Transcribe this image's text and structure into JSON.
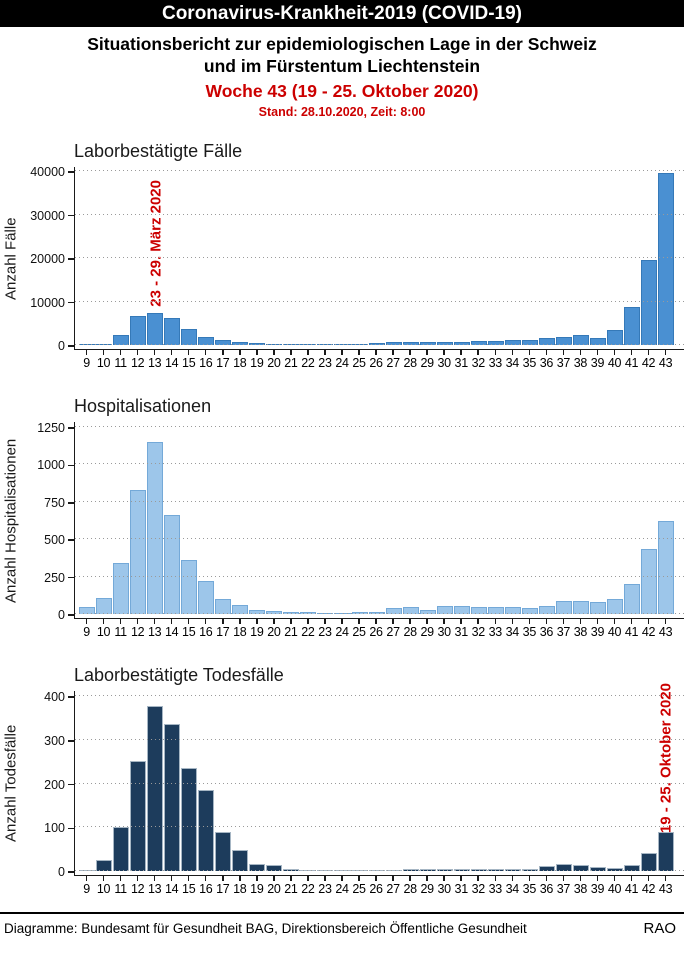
{
  "header": {
    "banner": "Coronavirus-Krankheit-2019 (COVID-19)",
    "subtitle_line1": "Situationsbericht zur epidemiologischen Lage in der Schweiz",
    "subtitle_line2": "und im Fürstentum Liechtenstein",
    "week_line": "Woche 43 (19 - 25. Oktober 2020)",
    "stand_line": "Stand: 28.10.2020, Zeit: 8:00",
    "accent_red": "#cc0000"
  },
  "footer": {
    "source": "Diagramme: Bundesamt für Gesundheit BAG,  Direktionsbereich Öffentliche Gesundheit",
    "initials": "RAO"
  },
  "chart_data": [
    {
      "type": "bar",
      "title": "Laborbestätigte Fälle",
      "ylabel": "Anzahl Fälle",
      "xlabel": "",
      "categories": [
        9,
        10,
        11,
        12,
        13,
        14,
        15,
        16,
        17,
        18,
        19,
        20,
        21,
        22,
        23,
        24,
        25,
        26,
        27,
        28,
        29,
        30,
        31,
        32,
        33,
        34,
        35,
        36,
        37,
        38,
        39,
        40,
        41,
        42,
        43
      ],
      "values": [
        100,
        250,
        2300,
        6600,
        7400,
        6100,
        3650,
        1800,
        1050,
        680,
        450,
        300,
        230,
        230,
        200,
        180,
        250,
        400,
        650,
        750,
        650,
        700,
        800,
        850,
        1000,
        1200,
        1100,
        1600,
        1900,
        2200,
        1700,
        3400,
        8800,
        19500,
        39500
      ],
      "yticks": [
        0,
        10000,
        20000,
        30000,
        40000
      ],
      "ylim": [
        0,
        40000
      ],
      "grid": "dotted-horizontal",
      "bar_color": "#4a90d2",
      "annotation": {
        "text": "23 - 29. März 2020",
        "week": 13,
        "color": "#cc0000"
      }
    },
    {
      "type": "bar",
      "title": "Hospitalisationen",
      "ylabel": "Anzahl Hospitalisationen",
      "xlabel": "",
      "categories": [
        9,
        10,
        11,
        12,
        13,
        14,
        15,
        16,
        17,
        18,
        19,
        20,
        21,
        22,
        23,
        24,
        25,
        26,
        27,
        28,
        29,
        30,
        31,
        32,
        33,
        34,
        35,
        36,
        37,
        38,
        39,
        40,
        41,
        42,
        43
      ],
      "values": [
        50,
        105,
        340,
        830,
        1150,
        660,
        360,
        220,
        100,
        60,
        26,
        22,
        15,
        13,
        6,
        4,
        11,
        13,
        37,
        50,
        30,
        54,
        54,
        46,
        48,
        48,
        37,
        54,
        87,
        87,
        80,
        100,
        200,
        435,
        620
      ],
      "yticks": [
        0,
        250,
        500,
        750,
        1000,
        1250
      ],
      "ylim": [
        0,
        1250
      ],
      "grid": "dotted-horizontal",
      "bar_color": "#9dc6ea",
      "annotation": null
    },
    {
      "type": "bar",
      "title": "Laborbestätigte Todesfälle",
      "ylabel": "Anzahl Todesfälle",
      "xlabel": "",
      "categories": [
        9,
        10,
        11,
        12,
        13,
        14,
        15,
        16,
        17,
        18,
        19,
        20,
        21,
        22,
        23,
        24,
        25,
        26,
        27,
        28,
        29,
        30,
        31,
        32,
        33,
        34,
        35,
        36,
        37,
        38,
        39,
        40,
        41,
        42,
        43
      ],
      "values": [
        2,
        25,
        100,
        252,
        378,
        335,
        235,
        185,
        89,
        49,
        17,
        14,
        4,
        2,
        3,
        2,
        2,
        2,
        2,
        4,
        5,
        5,
        5,
        5,
        5,
        5,
        4,
        11,
        15,
        13,
        10,
        8,
        14,
        42,
        90
      ],
      "yticks": [
        0,
        100,
        200,
        300,
        400
      ],
      "ylim": [
        0,
        400
      ],
      "grid": "dotted-horizontal",
      "bar_color": "#1d3c5c",
      "annotation": {
        "text": "19 - 25. Oktober 2020",
        "week": 43,
        "color": "#cc0000"
      }
    }
  ]
}
